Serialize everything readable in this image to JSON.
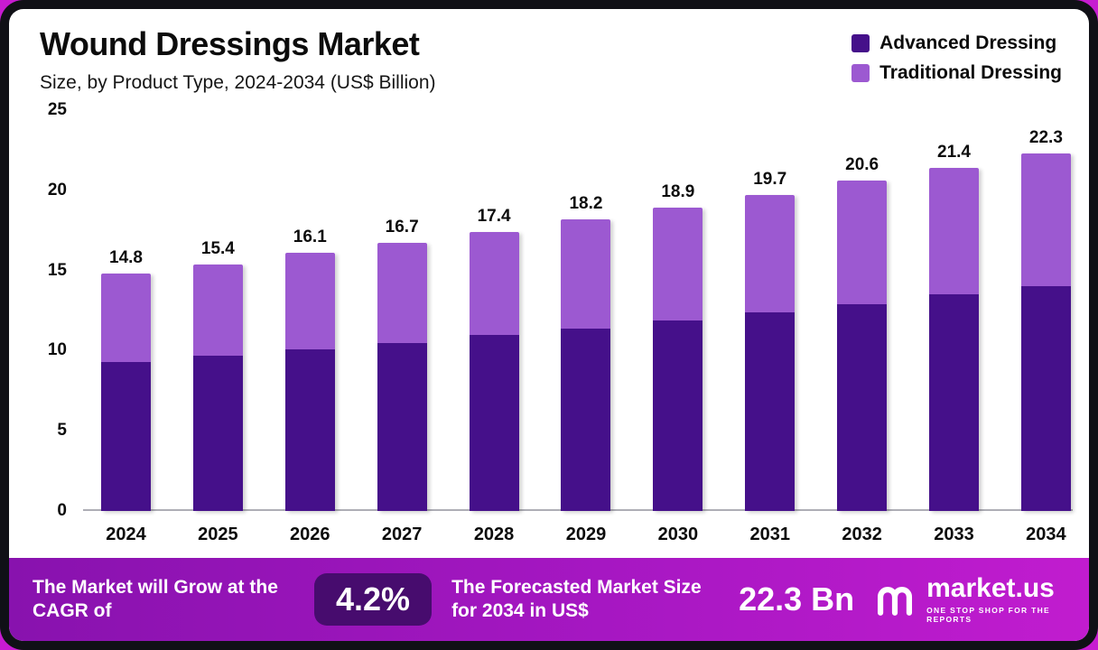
{
  "header": {
    "title": "Wound Dressings Market",
    "subtitle": "Size, by Product Type, 2024-2034 (US$ Billion)"
  },
  "legend": {
    "advanced": {
      "label": "Advanced Dressing",
      "color": "#45108A"
    },
    "traditional": {
      "label": "Traditional Dressing",
      "color": "#9C59D1"
    }
  },
  "chart_data": {
    "type": "bar",
    "stacked": true,
    "title": "Wound Dressings Market",
    "subtitle": "Size, by Product Type, 2024-2034 (US$ Billion)",
    "categories": [
      "2024",
      "2025",
      "2026",
      "2027",
      "2028",
      "2029",
      "2030",
      "2031",
      "2032",
      "2033",
      "2034"
    ],
    "series": [
      {
        "name": "Advanced Dressing",
        "color": "#45108A",
        "values": [
          9.3,
          9.7,
          10.1,
          10.5,
          11.0,
          11.4,
          11.9,
          12.4,
          12.9,
          13.5,
          14.0
        ]
      },
      {
        "name": "Traditional Dressing",
        "color": "#9C59D1",
        "values": [
          5.5,
          5.7,
          6.0,
          6.2,
          6.4,
          6.8,
          7.0,
          7.3,
          7.7,
          7.9,
          8.3
        ]
      }
    ],
    "totals": [
      14.8,
      15.4,
      16.1,
      16.7,
      17.4,
      18.2,
      18.9,
      19.7,
      20.6,
      21.4,
      22.3
    ],
    "ylim": [
      0,
      25
    ],
    "yticks": [
      0,
      5,
      10,
      15,
      20,
      25
    ],
    "grid": false,
    "legend_position": "top-right"
  },
  "footer": {
    "cagr_label": "The Market will Grow at the CAGR of",
    "cagr_value": "4.2%",
    "forecast_label": "The Forecasted Market Size for 2034 in US$",
    "forecast_value": "22.3 Bn",
    "brand": "market.us",
    "brand_tagline": "ONE STOP SHOP FOR THE REPORTS"
  },
  "colors": {
    "advanced": "#45108A",
    "traditional": "#9C59D1",
    "footer_badge": "#470C6E",
    "frame": "#101016",
    "corner_accent": "#C71BD1"
  }
}
